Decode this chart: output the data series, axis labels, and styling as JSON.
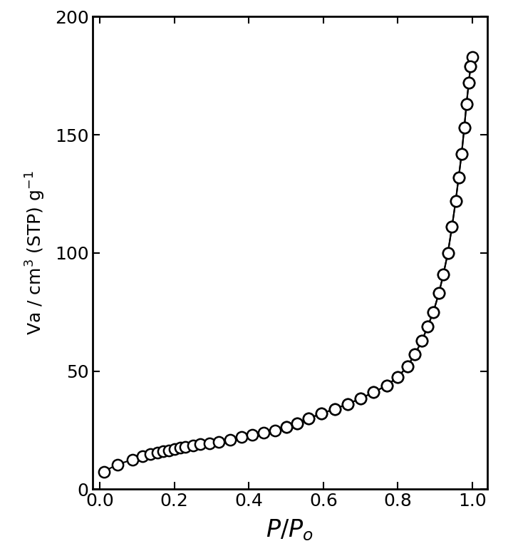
{
  "adsorption_x": [
    0.011,
    0.047,
    0.087,
    0.115,
    0.135,
    0.155,
    0.17,
    0.185,
    0.2,
    0.215,
    0.23,
    0.25,
    0.27,
    0.295,
    0.32,
    0.35,
    0.38,
    0.41,
    0.44,
    0.47,
    0.5,
    0.53,
    0.56,
    0.595,
    0.63,
    0.665,
    0.7,
    0.735,
    0.77,
    0.8,
    0.825,
    0.845,
    0.865,
    0.88,
    0.895,
    0.91,
    0.922,
    0.934,
    0.945,
    0.955,
    0.963,
    0.971,
    0.978,
    0.984,
    0.99,
    0.995,
    1.0
  ],
  "adsorption_y": [
    7.5,
    10.5,
    12.5,
    14.0,
    15.0,
    15.5,
    16.0,
    16.5,
    17.0,
    17.5,
    18.0,
    18.5,
    19.0,
    19.5,
    20.0,
    21.0,
    22.0,
    23.0,
    24.0,
    25.0,
    26.5,
    28.0,
    30.0,
    32.0,
    34.0,
    36.0,
    38.5,
    41.0,
    44.0,
    47.5,
    52.0,
    57.0,
    63.0,
    69.0,
    75.0,
    83.0,
    91.0,
    100.0,
    111.0,
    122.0,
    132.0,
    142.0,
    153.0,
    163.0,
    172.0,
    179.0,
    183.0
  ],
  "desorption_x": [
    0.995,
    0.99,
    0.984,
    0.978,
    0.971,
    0.963,
    0.955,
    0.945,
    0.934,
    0.922,
    0.91,
    0.895,
    0.88,
    0.865,
    0.845,
    0.825,
    0.8,
    0.77,
    0.735,
    0.7,
    0.665,
    0.63,
    0.595,
    0.56,
    0.53,
    0.5
  ],
  "desorption_y": [
    179.0,
    172.0,
    163.0,
    153.0,
    142.0,
    132.0,
    122.0,
    111.0,
    100.0,
    91.0,
    83.0,
    75.0,
    69.0,
    63.0,
    57.0,
    52.0,
    47.5,
    44.0,
    41.0,
    38.5,
    36.0,
    34.0,
    32.0,
    30.0,
    28.0,
    26.5
  ],
  "xlabel": "$P/P_{o}$",
  "ylabel_parts": [
    "Va / cm",
    "3",
    " (STP) g",
    "-1"
  ],
  "xlim": [
    -0.02,
    1.04
  ],
  "ylim": [
    0,
    200
  ],
  "xticks": [
    0.0,
    0.2,
    0.4,
    0.6,
    0.8,
    1.0
  ],
  "yticks": [
    0,
    50,
    100,
    150,
    200
  ],
  "marker_size": 11,
  "line_color": "black",
  "marker_facecolor": "white",
  "marker_edgecolor": "black",
  "linewidth": 1.5,
  "marker_edgewidth": 1.8
}
